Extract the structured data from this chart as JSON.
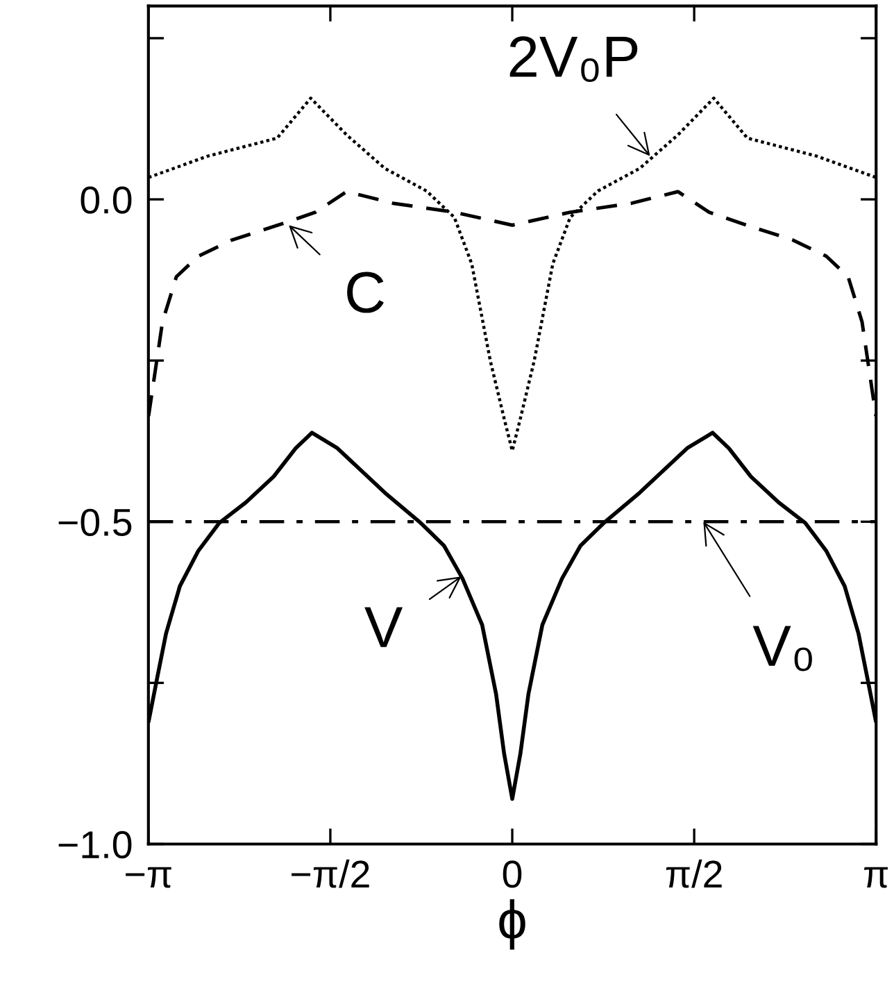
{
  "chart_data": {
    "type": "line",
    "xlabel": "ϕ",
    "xlim": [
      -3.14159,
      3.14159
    ],
    "ylim": [
      -1.0,
      0.3
    ],
    "xticks": [
      {
        "value": -3.14159,
        "label": "−π"
      },
      {
        "value": -1.5708,
        "label": "−π/2"
      },
      {
        "value": 0,
        "label": "0"
      },
      {
        "value": 1.5708,
        "label": "π/2"
      },
      {
        "value": 3.14159,
        "label": "π"
      }
    ],
    "yticks": [
      {
        "value": -1.0,
        "label": "−1.0"
      },
      {
        "value": -0.75,
        "label": null
      },
      {
        "value": -0.5,
        "label": "−0.5"
      },
      {
        "value": -0.25,
        "label": null
      },
      {
        "value": 0,
        "label": "0.0"
      },
      {
        "value": 0.25,
        "label": null
      }
    ],
    "grid": false,
    "legend": false,
    "marker": "none",
    "series": [
      {
        "color": "#000000",
        "line_style": "dotted",
        "x": [
          -3.14,
          -2.63,
          -2.03,
          -1.74,
          -1.43,
          -1.1,
          -0.74,
          -0.5,
          -0.35,
          -0.19,
          -0.07,
          0,
          0.07,
          0.19,
          0.35,
          0.5,
          0.74,
          1.1,
          1.43,
          1.74,
          2.03,
          2.63,
          3.14
        ],
        "values": [
          0.034,
          0.067,
          0.095,
          0.157,
          0.1,
          0.048,
          0.013,
          -0.028,
          -0.1,
          -0.25,
          -0.34,
          -0.39,
          -0.34,
          -0.25,
          -0.1,
          -0.028,
          0.013,
          0.048,
          0.1,
          0.157,
          0.095,
          0.067,
          0.034
        ]
      },
      {
        "color": "#000000",
        "line_style": "dashed",
        "x": [
          -3.14,
          -3.02,
          -2.9,
          -2.71,
          -2.42,
          -1.99,
          -1.7,
          -1.43,
          -1.03,
          -0.5,
          0,
          0.5,
          1.03,
          1.43,
          1.7,
          1.99,
          2.42,
          2.71,
          2.9,
          3.02,
          3.14
        ],
        "values": [
          -0.336,
          -0.19,
          -0.12,
          -0.088,
          -0.063,
          -0.038,
          -0.02,
          0.012,
          -0.006,
          -0.02,
          -0.04,
          -0.02,
          -0.006,
          0.012,
          -0.02,
          -0.038,
          -0.063,
          -0.088,
          -0.12,
          -0.19,
          -0.336
        ]
      },
      {
        "color": "#000000",
        "line_style": "solid",
        "x": [
          -3.14,
          -3.07,
          -2.99,
          -2.87,
          -2.71,
          -2.53,
          -2.3,
          -2.06,
          -1.87,
          -1.73,
          -1.51,
          -1.1,
          -0.79,
          -0.59,
          -0.43,
          -0.26,
          -0.14,
          -0.07,
          0,
          0.07,
          0.14,
          0.26,
          0.43,
          0.59,
          0.79,
          1.1,
          1.51,
          1.73,
          1.87,
          2.06,
          2.3,
          2.53,
          2.71,
          2.87,
          2.99,
          3.07,
          3.14
        ],
        "values": [
          -0.81,
          -0.746,
          -0.674,
          -0.6,
          -0.545,
          -0.502,
          -0.47,
          -0.43,
          -0.386,
          -0.362,
          -0.386,
          -0.455,
          -0.502,
          -0.537,
          -0.588,
          -0.66,
          -0.767,
          -0.86,
          -0.93,
          -0.86,
          -0.767,
          -0.66,
          -0.588,
          -0.537,
          -0.502,
          -0.455,
          -0.386,
          -0.362,
          -0.386,
          -0.43,
          -0.47,
          -0.502,
          -0.545,
          -0.6,
          -0.674,
          -0.746,
          -0.81
        ]
      }
    ],
    "ref_lines": [
      {
        "axis": "y",
        "value": -0.5,
        "color": "#000000",
        "line_style": "dashdot"
      }
    ],
    "annotations": [
      {
        "text": "2V₀P",
        "x": 1.19,
        "y": 0.067
      },
      {
        "text": "C",
        "x": -1.93,
        "y": -0.04
      },
      {
        "text": "V",
        "x": -0.44,
        "y": -0.585
      },
      {
        "text": "V₀",
        "x": 1.65,
        "y": -0.5
      }
    ]
  }
}
